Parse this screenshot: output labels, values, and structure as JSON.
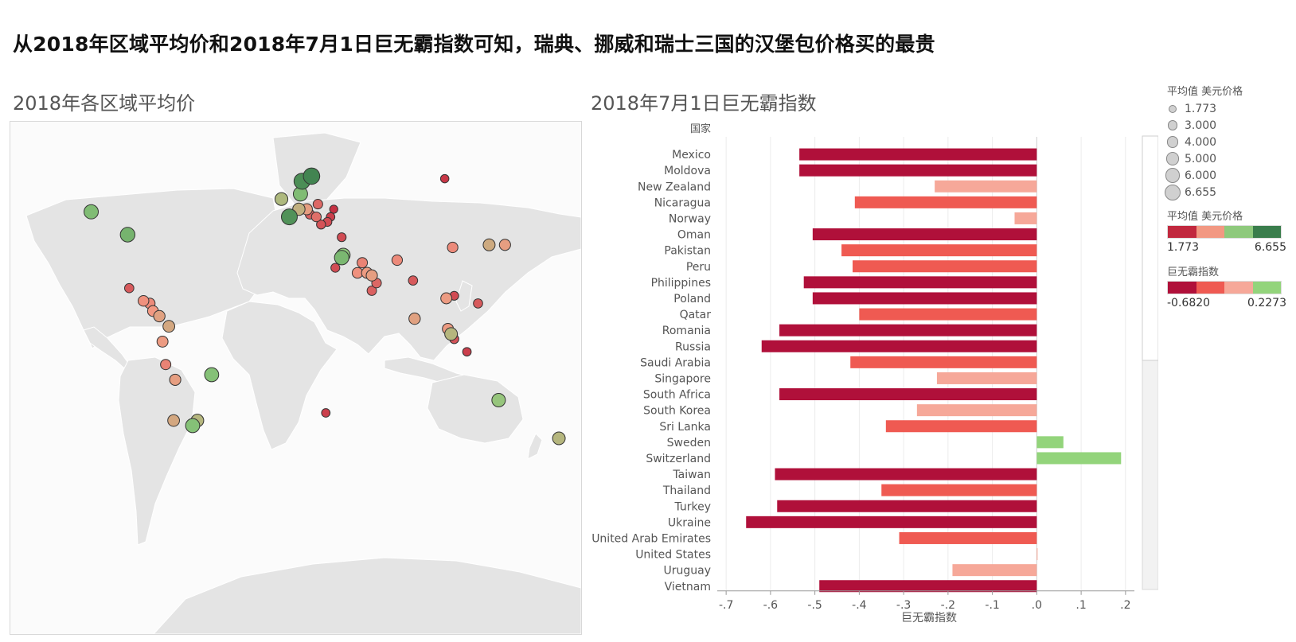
{
  "headline": "从2018年区域平均价和2018年7月1日巨无霸指数可知，瑞典、挪威和瑞士三国的汉堡包价格买的最贵",
  "map": {
    "title": "2018年各区域平均价",
    "points": [
      {
        "lon": -123,
        "lat": 49,
        "price": 5.3
      },
      {
        "lon": -100,
        "lat": 40,
        "price": 5.5
      },
      {
        "lon": -99,
        "lat": 19,
        "price": 2.5
      },
      {
        "lon": -90,
        "lat": 14,
        "price": 3.3
      },
      {
        "lon": -86,
        "lat": 13,
        "price": 3.2
      },
      {
        "lon": -84,
        "lat": 10,
        "price": 3.4
      },
      {
        "lon": -80,
        "lat": 8,
        "price": 3.7
      },
      {
        "lon": -74,
        "lat": 4,
        "price": 3.9
      },
      {
        "lon": -78,
        "lat": -2,
        "price": 3.5
      },
      {
        "lon": -76,
        "lat": -11,
        "price": 3.1
      },
      {
        "lon": -70,
        "lat": -17,
        "price": 3.6
      },
      {
        "lon": -71,
        "lat": -33,
        "price": 3.9
      },
      {
        "lon": -47,
        "lat": -15,
        "price": 5.2
      },
      {
        "lon": -56,
        "lat": -33,
        "price": 4.4
      },
      {
        "lon": -59,
        "lat": -35,
        "price": 5.2
      },
      {
        "lon": -3,
        "lat": 54,
        "price": 4.5
      },
      {
        "lon": 10,
        "lat": 61,
        "price": 6.3
      },
      {
        "lon": 16,
        "lat": 63,
        "price": 6.5
      },
      {
        "lon": 9,
        "lat": 56,
        "price": 5.3
      },
      {
        "lon": 2,
        "lat": 47,
        "price": 6.2
      },
      {
        "lon": 8,
        "lat": 50,
        "price": 4.2
      },
      {
        "lon": 13,
        "lat": 50,
        "price": 3.6
      },
      {
        "lon": 20,
        "lat": 52,
        "price": 2.7
      },
      {
        "lon": 15,
        "lat": 48,
        "price": 2.6
      },
      {
        "lon": 19,
        "lat": 47,
        "price": 2.8
      },
      {
        "lon": 22,
        "lat": 44,
        "price": 2.4
      },
      {
        "lon": 26,
        "lat": 45,
        "price": 2.3
      },
      {
        "lon": 30,
        "lat": 50,
        "price": 1.9
      },
      {
        "lon": 28,
        "lat": 47,
        "price": 2.1
      },
      {
        "lon": 35,
        "lat": 39,
        "price": 2.3
      },
      {
        "lon": 35,
        "lat": 31,
        "price": 5.4
      },
      {
        "lon": 36,
        "lat": 32,
        "price": 5.0
      },
      {
        "lon": 31,
        "lat": 27,
        "price": 2.3
      },
      {
        "lon": 45,
        "lat": 25,
        "price": 3.3
      },
      {
        "lon": 48,
        "lat": 29,
        "price": 3.1
      },
      {
        "lon": 51,
        "lat": 25,
        "price": 3.5
      },
      {
        "lon": 54,
        "lat": 24,
        "price": 3.6
      },
      {
        "lon": 57,
        "lat": 21,
        "price": 2.7
      },
      {
        "lon": 54,
        "lat": 18,
        "price": 2.6
      },
      {
        "lon": 70,
        "lat": 30,
        "price": 3.2
      },
      {
        "lon": 80,
        "lat": 22,
        "price": 2.5
      },
      {
        "lon": 81,
        "lat": 7,
        "price": 3.7
      },
      {
        "lon": 101,
        "lat": 15,
        "price": 3.5
      },
      {
        "lon": 106,
        "lat": 16,
        "price": 2.3
      },
      {
        "lon": 102,
        "lat": 3,
        "price": 3.5
      },
      {
        "lon": 104,
        "lat": 1,
        "price": 4.4
      },
      {
        "lon": 106,
        "lat": -1,
        "price": 2.4
      },
      {
        "lon": 105,
        "lat": 35,
        "price": 3.2
      },
      {
        "lon": 121,
        "lat": 13,
        "price": 2.5
      },
      {
        "lon": 114,
        "lat": -6,
        "price": 2.1
      },
      {
        "lon": 128,
        "lat": 36,
        "price": 4.0
      },
      {
        "lon": 138,
        "lat": 36,
        "price": 3.6
      },
      {
        "lon": 100,
        "lat": 62,
        "price": 2.0
      },
      {
        "lon": 134,
        "lat": -25,
        "price": 4.9
      },
      {
        "lon": 172,
        "lat": -40,
        "price": 4.4
      },
      {
        "lon": 25,
        "lat": -30,
        "price": 2.1
      }
    ]
  },
  "legend": {
    "size_title": "平均值 美元价格",
    "size_items": [
      "1.773",
      "3.000",
      "4.000",
      "5.000",
      "6.000",
      "6.655"
    ],
    "size_values": [
      1.773,
      3.0,
      4.0,
      5.0,
      6.0,
      6.655
    ],
    "price_title": "平均值 美元价格",
    "price_colors": [
      "#c1283e",
      "#f29882",
      "#8ec97c",
      "#3a7d4c"
    ],
    "price_min": "1.773",
    "price_max": "6.655",
    "index_title": "巨无霸指数",
    "index_colors": [
      "#b0103a",
      "#ef5a52",
      "#f6a899",
      "#93d47b"
    ],
    "index_min": "-0.6820",
    "index_max": "0.2273"
  },
  "chart_data": {
    "type": "bar",
    "orientation": "horizontal",
    "title": "2018年7月1日巨无霸指数",
    "category_header": "国家",
    "xlabel": "巨无霸指数",
    "xlim": [
      -0.72,
      0.22
    ],
    "x_ticks": [
      "-.7",
      "-.6",
      "-.5",
      "-.4",
      "-.3",
      "-.2",
      "-.1",
      ".0",
      ".1",
      ".2"
    ],
    "x_tick_values": [
      -0.7,
      -0.6,
      -0.5,
      -0.4,
      -0.3,
      -0.2,
      -0.1,
      0.0,
      0.1,
      0.2
    ],
    "grid": "vertical",
    "categories": [
      "Mexico",
      "Moldova",
      "New Zealand",
      "Nicaragua",
      "Norway",
      "Oman",
      "Pakistan",
      "Peru",
      "Philippines",
      "Poland",
      "Qatar",
      "Romania",
      "Russia",
      "Saudi Arabia",
      "Singapore",
      "South Africa",
      "South Korea",
      "Sri Lanka",
      "Sweden",
      "Switzerland",
      "Taiwan",
      "Thailand",
      "Turkey",
      "Ukraine",
      "United Arab Emirates",
      "United States",
      "Uruguay",
      "Vietnam"
    ],
    "values": [
      -0.535,
      -0.535,
      -0.23,
      -0.41,
      -0.05,
      -0.505,
      -0.44,
      -0.415,
      -0.525,
      -0.505,
      -0.4,
      -0.58,
      -0.62,
      -0.42,
      -0.225,
      -0.58,
      -0.27,
      -0.34,
      0.06,
      0.19,
      -0.59,
      -0.35,
      -0.585,
      -0.655,
      -0.31,
      0.0,
      -0.19,
      -0.49
    ]
  }
}
